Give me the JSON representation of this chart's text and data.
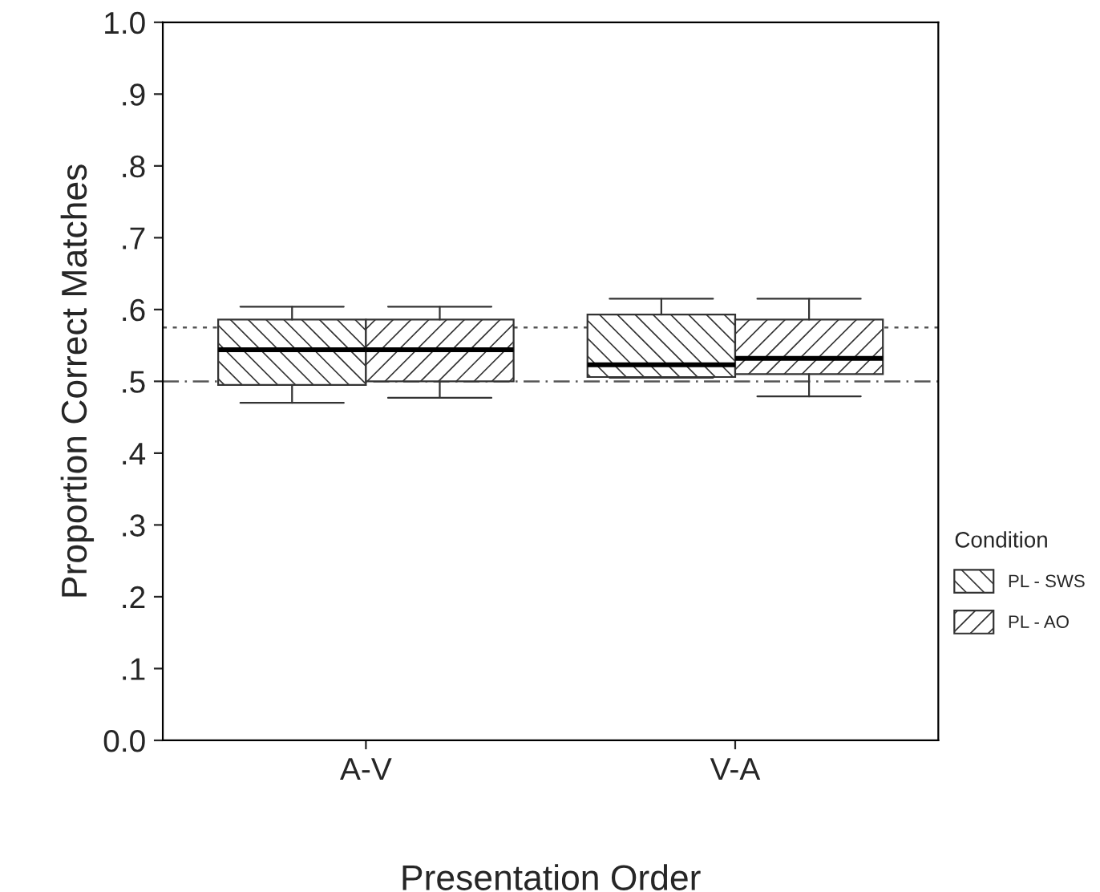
{
  "chart_data": {
    "type": "box",
    "xlabel": "Presentation Order",
    "ylabel": "Proportion Correct Matches",
    "legend_title": "Condition",
    "legend": "right",
    "categories": [
      "A-V",
      "V-A"
    ],
    "series": [
      {
        "name": "PL - SWS",
        "boxes": [
          {
            "low": 0.47,
            "q1": 0.495,
            "median": 0.544,
            "q3": 0.586,
            "high": 0.604
          },
          {
            "low": 0.505,
            "q1": 0.506,
            "median": 0.523,
            "q3": 0.593,
            "high": 0.615
          }
        ]
      },
      {
        "name": "PL - AO",
        "boxes": [
          {
            "low": 0.477,
            "q1": 0.5,
            "median": 0.544,
            "q3": 0.586,
            "high": 0.604
          },
          {
            "low": 0.479,
            "q1": 0.51,
            "median": 0.532,
            "q3": 0.586,
            "high": 0.615
          }
        ]
      }
    ],
    "ref_lines": [
      {
        "axis": "y",
        "value": 0.575,
        "line_style": "dotted",
        "color": "#555555"
      },
      {
        "axis": "y",
        "value": 0.5,
        "line_style": "dashdot",
        "color": "#555555"
      }
    ],
    "ylim": [
      0,
      1
    ],
    "yticks": [
      {
        "value": 0,
        "label": "0.0"
      },
      {
        "value": 0.1,
        "label": ".1"
      },
      {
        "value": 0.2,
        "label": ".2"
      },
      {
        "value": 0.3,
        "label": ".3"
      },
      {
        "value": 0.4,
        "label": ".4"
      },
      {
        "value": 0.5,
        "label": ".5"
      },
      {
        "value": 0.6,
        "label": ".6"
      },
      {
        "value": 0.7,
        "label": ".7"
      },
      {
        "value": 0.8,
        "label": ".8"
      },
      {
        "value": 0.9,
        "label": ".9"
      },
      {
        "value": 1,
        "label": "1.0"
      }
    ],
    "grid": false
  }
}
